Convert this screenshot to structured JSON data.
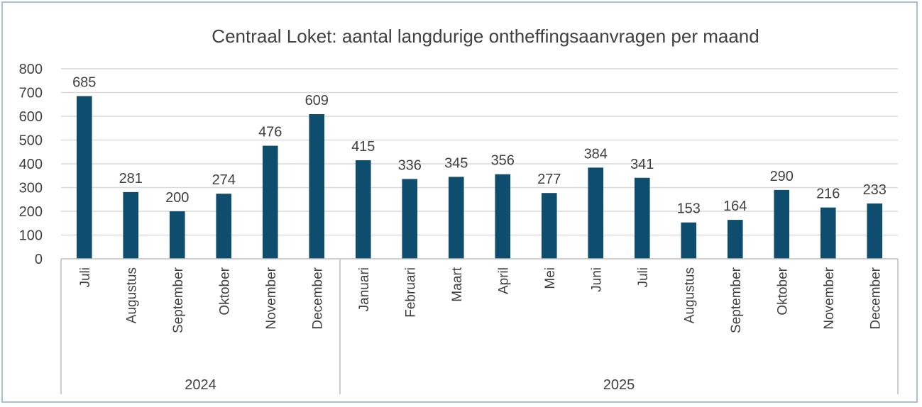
{
  "chart_data": {
    "type": "bar",
    "title": "Centraal Loket: aantal langdurige ontheffingsaanvragen per maand",
    "xlabel": "",
    "ylabel": "",
    "ylim": [
      0,
      800
    ],
    "yticks": [
      0,
      100,
      200,
      300,
      400,
      500,
      600,
      700,
      800
    ],
    "grid": true,
    "bar_color": "#0e4d6e",
    "groups": [
      {
        "label": "2024",
        "categories": [
          "Juli",
          "Augustus",
          "September",
          "Oktober",
          "November",
          "December"
        ]
      },
      {
        "label": "2025",
        "categories": [
          "Januari",
          "Februari",
          "Maart",
          "April",
          "Mei",
          "Juni",
          "Juli",
          "Augustus",
          "September",
          "Oktober",
          "November",
          "December"
        ]
      }
    ],
    "values": [
      685,
      281,
      200,
      274,
      476,
      609,
      415,
      336,
      345,
      356,
      277,
      384,
      341,
      153,
      164,
      290,
      216,
      233
    ]
  }
}
